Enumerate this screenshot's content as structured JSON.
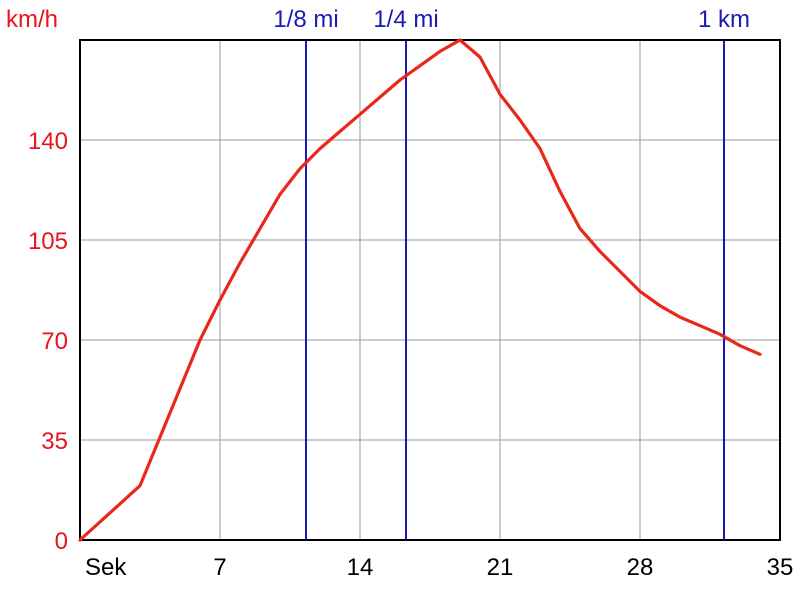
{
  "chart_data": {
    "type": "line",
    "ylabel": "km/h",
    "xlabel": "Sek",
    "xlim": [
      0,
      35
    ],
    "ylim": [
      0,
      175
    ],
    "xticks": [
      7,
      14,
      21,
      28,
      35
    ],
    "yticks": [
      0,
      35,
      70,
      105,
      140
    ],
    "grid": true,
    "series": [
      {
        "x": [
          0,
          3,
          4,
          5,
          6,
          7,
          8,
          9,
          10,
          11,
          12,
          13,
          14,
          15,
          16,
          17,
          18,
          19,
          20,
          21,
          22,
          23,
          24,
          25,
          26,
          27,
          28,
          29,
          30,
          31,
          32,
          33,
          34
        ],
        "y": [
          0,
          19,
          36,
          53,
          70,
          84,
          97,
          109,
          121,
          130,
          137,
          143,
          149,
          155,
          161,
          166,
          171,
          175,
          169,
          156,
          147,
          137,
          122,
          109,
          101,
          94,
          87,
          82,
          78,
          75,
          72,
          68,
          65
        ]
      }
    ],
    "markers": [
      {
        "label": "1/8 mi",
        "x": 11.3
      },
      {
        "label": "1/4 mi",
        "x": 16.3
      },
      {
        "label": "1 km",
        "x": 32.2
      }
    ],
    "colors": {
      "line": "#e8281b",
      "marker": "#1a1ab4",
      "axis_text": "#e8141b",
      "grid": "#9a9a9a"
    }
  }
}
